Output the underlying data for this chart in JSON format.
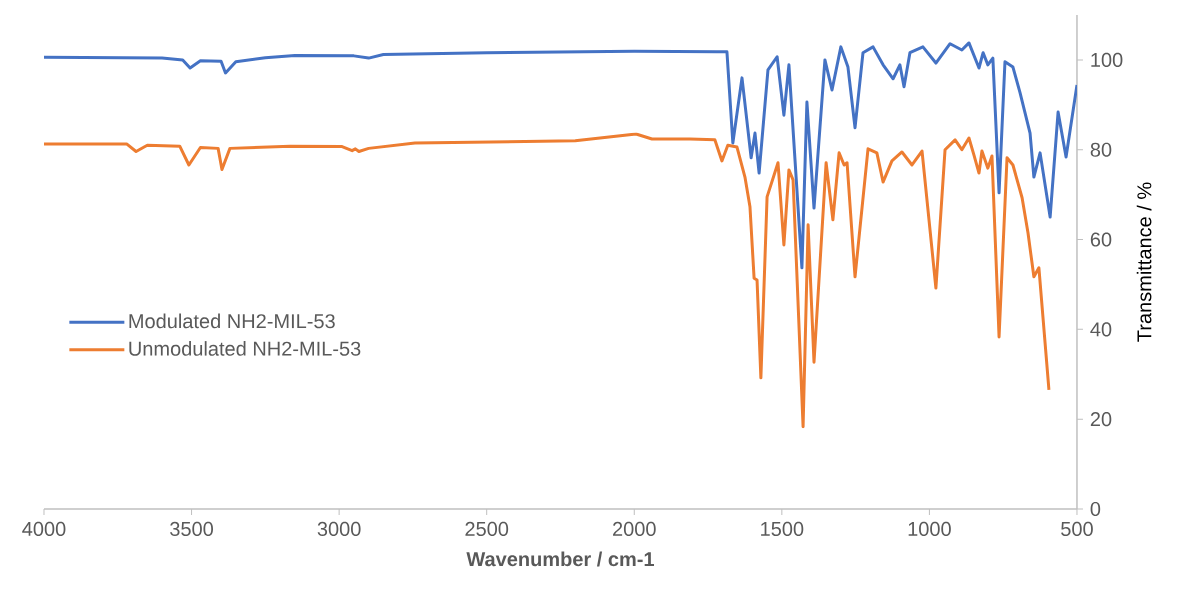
{
  "chart_data": {
    "type": "line",
    "xlabel": "Wavenumber / cm-1",
    "ylabel": "Transmittance / %",
    "xlim": [
      4000,
      500
    ],
    "xticks": [
      4000,
      3500,
      3000,
      2500,
      2000,
      1500,
      1000,
      500
    ],
    "ylim": [
      0,
      110
    ],
    "yticks": [
      0,
      20,
      40,
      60,
      80,
      100
    ],
    "grid": false,
    "legend": "left",
    "marker": "none",
    "line_style": "solid",
    "series": [
      {
        "name": "Modulated NH2-MIL-53",
        "color": "#4472c4",
        "x": [
          4000,
          3600,
          3530,
          3505,
          3470,
          3400,
          3385,
          3350,
          3250,
          3150,
          2950,
          2900,
          2850,
          2500,
          2000,
          1720,
          1686,
          1666,
          1635,
          1604,
          1591,
          1577,
          1547,
          1516,
          1493,
          1476,
          1432,
          1415,
          1391,
          1354,
          1330,
          1300,
          1276,
          1252,
          1225,
          1191,
          1157,
          1123,
          1100,
          1086,
          1066,
          1022,
          978,
          930,
          890,
          866,
          832,
          818,
          802,
          785,
          764,
          744,
          717,
          693,
          659,
          646,
          625,
          591,
          564,
          537,
          500
        ],
        "values": [
          100.6,
          100.4,
          100,
          98.2,
          99.8,
          99.7,
          97.1,
          99.6,
          100.5,
          101,
          100.9,
          100.4,
          101.2,
          101.6,
          101.9,
          101.8,
          101.8,
          81.5,
          96,
          78.2,
          83.7,
          74.8,
          97.8,
          100.7,
          87.7,
          98.9,
          53.7,
          90.6,
          67,
          100,
          93.3,
          102.9,
          98.4,
          84.9,
          101.6,
          102.9,
          98.9,
          95.8,
          98.9,
          94,
          101.6,
          102.9,
          99.3,
          103.6,
          102.2,
          103.8,
          98.2,
          101.6,
          98.9,
          100.4,
          70.4,
          99.6,
          98.4,
          92.7,
          83.7,
          73.9,
          79.3,
          65,
          88.4,
          78.4,
          94.4
        ]
      },
      {
        "name": "Unmodulated NH2-MIL-53",
        "color": "#ed7d31",
        "x": [
          4000,
          3720,
          3688,
          3650,
          3540,
          3509,
          3470,
          3410,
          3397,
          3370,
          3166,
          2990,
          2956,
          2945,
          2933,
          2900,
          2743,
          2200,
          1994,
          1940,
          1811,
          1727,
          1703,
          1683,
          1652,
          1625,
          1608,
          1594,
          1584,
          1571,
          1550,
          1513,
          1493,
          1476,
          1462,
          1428,
          1411,
          1391,
          1350,
          1327,
          1306,
          1289,
          1279,
          1252,
          1208,
          1178,
          1157,
          1127,
          1093,
          1059,
          1025,
          978,
          947,
          913,
          890,
          866,
          849,
          832,
          822,
          802,
          788,
          764,
          737,
          717,
          686,
          666,
          646,
          629,
          595
        ],
        "values": [
          81.3,
          81.3,
          79.6,
          81,
          80.8,
          76.6,
          80.5,
          80.3,
          75.6,
          80.3,
          80.8,
          80.7,
          79.8,
          80.2,
          79.6,
          80.3,
          81.5,
          82,
          83.5,
          82.4,
          82.4,
          82.2,
          77.5,
          81,
          80.6,
          73.9,
          67.3,
          51.4,
          51,
          29.2,
          69.5,
          77.1,
          58.8,
          75.5,
          73.3,
          18.3,
          63.3,
          32.7,
          77.1,
          64.4,
          79.3,
          76.6,
          77.1,
          51.7,
          80.2,
          79.3,
          72.8,
          77.5,
          79.5,
          76.6,
          79.7,
          49.2,
          80,
          82.2,
          80,
          82.6,
          78.8,
          74.8,
          79.7,
          75.9,
          78.6,
          38.3,
          78.2,
          76.6,
          69.3,
          61.5,
          51.7,
          53.7,
          26.5
        ]
      }
    ]
  }
}
